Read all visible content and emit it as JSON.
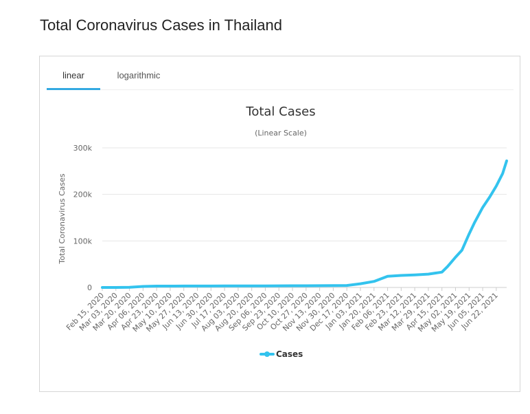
{
  "page": {
    "title": "Total Coronavirus Cases in Thailand"
  },
  "tabs": [
    {
      "label": "linear",
      "active": true
    },
    {
      "label": "logarithmic",
      "active": false
    }
  ],
  "colors": {
    "series": "#33c3ee",
    "tab_accent": "#33a9e1",
    "grid": "#e6e6e6"
  },
  "chart_data": {
    "type": "line",
    "title": "Total Cases",
    "subtitle": "(Linear Scale)",
    "xlabel": "",
    "ylabel": "Total Coronavirus Cases",
    "ylim": [
      0,
      300000
    ],
    "yticks": [
      {
        "value": 0,
        "label": "0"
      },
      {
        "value": 100000,
        "label": "100k"
      },
      {
        "value": 200000,
        "label": "200k"
      },
      {
        "value": 300000,
        "label": "300k"
      }
    ],
    "xticks": [
      "Feb 15, 2020",
      "Mar 03, 2020",
      "Mar 20, 2020",
      "Apr 06, 2020",
      "Apr 23, 2020",
      "May 10, 2020",
      "May 27, 2020",
      "Jun 13, 2020",
      "Jun 30, 2020",
      "Jul 17, 2020",
      "Aug 03, 2020",
      "Aug 20, 2020",
      "Sep 06, 2020",
      "Sep 23, 2020",
      "Oct 10, 2020",
      "Oct 27, 2020",
      "Nov 13, 2020",
      "Nov 30, 2020",
      "Dec 17, 2020",
      "Jan 03, 2021",
      "Jan 20, 2021",
      "Feb 06, 2021",
      "Feb 23, 2021",
      "Mar 12, 2021",
      "Mar 29, 2021",
      "Apr 15, 2021",
      "May 02, 2021",
      "May 19, 2021",
      "Jun 05, 2021",
      "Jun 22, 2021"
    ],
    "grid": true,
    "legend": "bottom-center",
    "series": [
      {
        "name": "Cases",
        "x": [
          "Feb 15, 2020",
          "Mar 03, 2020",
          "Mar 20, 2020",
          "Apr 06, 2020",
          "Apr 23, 2020",
          "May 10, 2020",
          "May 27, 2020",
          "Jun 13, 2020",
          "Jun 30, 2020",
          "Jul 17, 2020",
          "Aug 03, 2020",
          "Aug 20, 2020",
          "Sep 06, 2020",
          "Sep 23, 2020",
          "Oct 10, 2020",
          "Oct 27, 2020",
          "Nov 13, 2020",
          "Nov 30, 2020",
          "Dec 17, 2020",
          "Jan 03, 2021",
          "Jan 20, 2021",
          "Feb 06, 2021",
          "Feb 23, 2021",
          "Mar 12, 2021",
          "Mar 29, 2021",
          "Apr 15, 2021",
          "Apr 22, 2021",
          "May 02, 2021",
          "May 10, 2021",
          "May 19, 2021",
          "May 26, 2021",
          "Jun 05, 2021",
          "Jun 14, 2021",
          "Jun 22, 2021",
          "Jun 30, 2021",
          "Jul 05, 2021"
        ],
        "values": [
          35,
          50,
          400,
          2200,
          2900,
          3000,
          3050,
          3100,
          3170,
          3230,
          3320,
          3390,
          3440,
          3520,
          3640,
          3750,
          3860,
          4000,
          4300,
          8000,
          13000,
          24100,
          25900,
          27000,
          28700,
          33000,
          45000,
          65000,
          80000,
          115000,
          140000,
          172000,
          195000,
          218000,
          245000,
          272000
        ]
      }
    ]
  }
}
